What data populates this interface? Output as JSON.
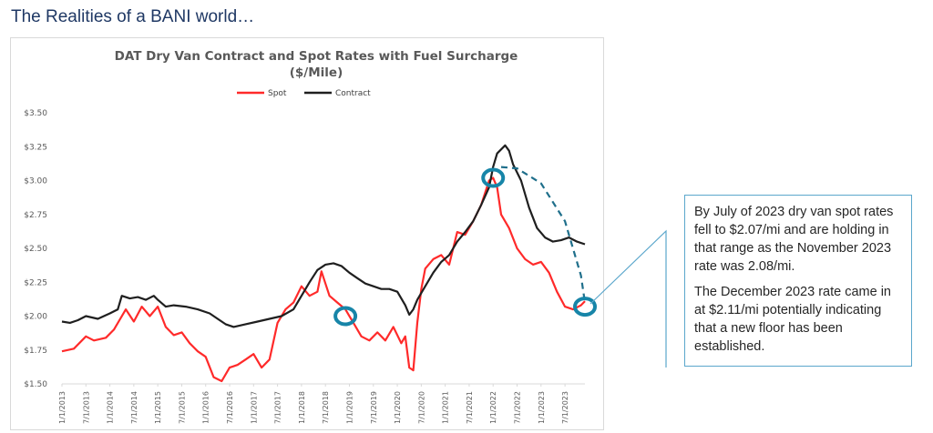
{
  "slide": {
    "title": "The Realities of a BANI world…"
  },
  "callout": {
    "paragraph_1": "By July of 2023 dry van spot rates fell to $2.07/mi and are holding in that range as the November 2023 rate was 2.08/mi.",
    "paragraph_2": "The December 2023 rate came in at $2.11/mi potentially indicating that a new floor has been established."
  },
  "chart_data": {
    "type": "line",
    "title": "DAT Dry Van Contract and Spot Rates with Fuel Surcharge",
    "subtitle": "($/Mile)",
    "ylim": [
      1.5,
      3.5
    ],
    "yticks": [
      "$1.50",
      "$1.75",
      "$2.00",
      "$2.25",
      "$2.50",
      "$2.75",
      "$3.00",
      "$3.25",
      "$3.50"
    ],
    "ytick_values": [
      1.5,
      1.75,
      2.0,
      2.25,
      2.5,
      2.75,
      3.0,
      3.25,
      3.5
    ],
    "x_start": "1/1/2013",
    "x_end": "12/1/2023",
    "xticks": [
      "1/1/2013",
      "7/1/2013",
      "1/1/2014",
      "7/1/2014",
      "1/1/2015",
      "7/1/2015",
      "1/1/2016",
      "7/1/2016",
      "1/1/2017",
      "7/1/2017",
      "1/1/2018",
      "7/1/2018",
      "1/1/2019",
      "7/1/2019",
      "1/1/2020",
      "7/1/2020",
      "1/1/2021",
      "7/1/2021",
      "1/1/2022",
      "7/1/2022",
      "1/1/2023",
      "7/1/2023"
    ],
    "legend_position": "top-center",
    "series": [
      {
        "name": "Spot",
        "color": "#ff2a2a",
        "points": [
          [
            "1/1/2013",
            1.74
          ],
          [
            "4/1/2013",
            1.76
          ],
          [
            "7/1/2013",
            1.85
          ],
          [
            "9/1/2013",
            1.82
          ],
          [
            "12/1/2013",
            1.84
          ],
          [
            "2/1/2014",
            1.9
          ],
          [
            "5/1/2014",
            2.05
          ],
          [
            "7/1/2014",
            1.96
          ],
          [
            "9/1/2014",
            2.07
          ],
          [
            "11/1/2014",
            2.0
          ],
          [
            "1/1/2015",
            2.07
          ],
          [
            "3/1/2015",
            1.92
          ],
          [
            "5/1/2015",
            1.86
          ],
          [
            "7/1/2015",
            1.88
          ],
          [
            "9/1/2015",
            1.8
          ],
          [
            "11/1/2015",
            1.74
          ],
          [
            "1/1/2016",
            1.7
          ],
          [
            "3/1/2016",
            1.55
          ],
          [
            "5/1/2016",
            1.52
          ],
          [
            "7/1/2016",
            1.62
          ],
          [
            "9/1/2016",
            1.64
          ],
          [
            "11/1/2016",
            1.68
          ],
          [
            "1/1/2017",
            1.72
          ],
          [
            "3/1/2017",
            1.62
          ],
          [
            "5/1/2017",
            1.68
          ],
          [
            "7/1/2017",
            1.95
          ],
          [
            "9/1/2017",
            2.05
          ],
          [
            "11/1/2017",
            2.1
          ],
          [
            "1/1/2018",
            2.22
          ],
          [
            "3/1/2018",
            2.15
          ],
          [
            "5/1/2018",
            2.18
          ],
          [
            "6/1/2018",
            2.33
          ],
          [
            "8/1/2018",
            2.15
          ],
          [
            "10/1/2018",
            2.1
          ],
          [
            "12/1/2018",
            2.05
          ],
          [
            "2/1/2019",
            1.95
          ],
          [
            "4/1/2019",
            1.85
          ],
          [
            "6/1/2019",
            1.82
          ],
          [
            "8/1/2019",
            1.88
          ],
          [
            "10/1/2019",
            1.82
          ],
          [
            "12/1/2019",
            1.92
          ],
          [
            "2/1/2020",
            1.8
          ],
          [
            "3/1/2020",
            1.85
          ],
          [
            "4/1/2020",
            1.62
          ],
          [
            "5/1/2020",
            1.6
          ],
          [
            "6/1/2020",
            1.95
          ],
          [
            "7/1/2020",
            2.2
          ],
          [
            "8/1/2020",
            2.35
          ],
          [
            "10/1/2020",
            2.42
          ],
          [
            "12/1/2020",
            2.45
          ],
          [
            "2/1/2021",
            2.38
          ],
          [
            "4/1/2021",
            2.62
          ],
          [
            "6/1/2021",
            2.6
          ],
          [
            "8/1/2021",
            2.7
          ],
          [
            "10/1/2021",
            2.82
          ],
          [
            "12/1/2021",
            3.0
          ],
          [
            "1/1/2022",
            3.02
          ],
          [
            "2/1/2022",
            2.95
          ],
          [
            "3/1/2022",
            2.75
          ],
          [
            "5/1/2022",
            2.65
          ],
          [
            "7/1/2022",
            2.5
          ],
          [
            "9/1/2022",
            2.42
          ],
          [
            "11/1/2022",
            2.38
          ],
          [
            "1/1/2023",
            2.4
          ],
          [
            "3/1/2023",
            2.32
          ],
          [
            "5/1/2023",
            2.18
          ],
          [
            "7/1/2023",
            2.07
          ],
          [
            "9/1/2023",
            2.05
          ],
          [
            "11/1/2023",
            2.08
          ],
          [
            "12/1/2023",
            2.11
          ]
        ]
      },
      {
        "name": "Contract",
        "color": "#1f1f1f",
        "points": [
          [
            "1/1/2013",
            1.96
          ],
          [
            "3/1/2013",
            1.95
          ],
          [
            "5/1/2013",
            1.97
          ],
          [
            "7/1/2013",
            2.0
          ],
          [
            "10/1/2013",
            1.98
          ],
          [
            "1/1/2014",
            2.02
          ],
          [
            "3/1/2014",
            2.05
          ],
          [
            "4/1/2014",
            2.15
          ],
          [
            "6/1/2014",
            2.13
          ],
          [
            "8/1/2014",
            2.14
          ],
          [
            "10/1/2014",
            2.12
          ],
          [
            "12/1/2014",
            2.15
          ],
          [
            "1/1/2015",
            2.12
          ],
          [
            "3/1/2015",
            2.07
          ],
          [
            "5/1/2015",
            2.08
          ],
          [
            "8/1/2015",
            2.07
          ],
          [
            "11/1/2015",
            2.05
          ],
          [
            "2/1/2016",
            2.02
          ],
          [
            "4/1/2016",
            1.98
          ],
          [
            "6/1/2016",
            1.94
          ],
          [
            "8/1/2016",
            1.92
          ],
          [
            "11/1/2016",
            1.94
          ],
          [
            "2/1/2017",
            1.96
          ],
          [
            "5/1/2017",
            1.98
          ],
          [
            "8/1/2017",
            2.0
          ],
          [
            "11/1/2017",
            2.05
          ],
          [
            "1/1/2018",
            2.15
          ],
          [
            "3/1/2018",
            2.25
          ],
          [
            "5/1/2018",
            2.34
          ],
          [
            "7/1/2018",
            2.38
          ],
          [
            "9/1/2018",
            2.39
          ],
          [
            "11/1/2018",
            2.37
          ],
          [
            "1/1/2019",
            2.32
          ],
          [
            "3/1/2019",
            2.28
          ],
          [
            "5/1/2019",
            2.24
          ],
          [
            "7/1/2019",
            2.22
          ],
          [
            "9/1/2019",
            2.2
          ],
          [
            "11/1/2019",
            2.2
          ],
          [
            "1/1/2020",
            2.18
          ],
          [
            "3/1/2020",
            2.08
          ],
          [
            "4/1/2020",
            2.01
          ],
          [
            "5/1/2020",
            2.05
          ],
          [
            "6/1/2020",
            2.12
          ],
          [
            "8/1/2020",
            2.22
          ],
          [
            "10/1/2020",
            2.32
          ],
          [
            "12/1/2020",
            2.4
          ],
          [
            "2/1/2021",
            2.45
          ],
          [
            "4/1/2021",
            2.55
          ],
          [
            "6/1/2021",
            2.62
          ],
          [
            "8/1/2021",
            2.7
          ],
          [
            "10/1/2021",
            2.82
          ],
          [
            "12/1/2021",
            2.95
          ],
          [
            "1/1/2022",
            3.1
          ],
          [
            "2/1/2022",
            3.2
          ],
          [
            "4/1/2022",
            3.26
          ],
          [
            "5/1/2022",
            3.22
          ],
          [
            "6/1/2022",
            3.12
          ],
          [
            "8/1/2022",
            3.0
          ],
          [
            "10/1/2022",
            2.8
          ],
          [
            "12/1/2022",
            2.65
          ],
          [
            "2/1/2023",
            2.58
          ],
          [
            "4/1/2023",
            2.55
          ],
          [
            "6/1/2023",
            2.56
          ],
          [
            "8/1/2023",
            2.58
          ],
          [
            "10/1/2023",
            2.55
          ],
          [
            "12/1/2023",
            2.53
          ]
        ]
      }
    ],
    "markers": [
      {
        "x": "12/1/2018",
        "y": 2.0,
        "color": "#1785a8"
      },
      {
        "x": "1/1/2022",
        "y": 3.02,
        "color": "#1785a8"
      },
      {
        "x": "12/1/2023",
        "y": 2.07,
        "color": "#1785a8"
      }
    ],
    "projection_arc": {
      "color": "#1f6f8b",
      "points": [
        [
          "3/1/2022",
          3.1
        ],
        [
          "7/1/2022",
          3.09
        ],
        [
          "1/1/2023",
          2.98
        ],
        [
          "7/1/2023",
          2.7
        ],
        [
          "11/1/2023",
          2.3
        ],
        [
          "12/1/2023",
          2.1
        ]
      ]
    }
  }
}
